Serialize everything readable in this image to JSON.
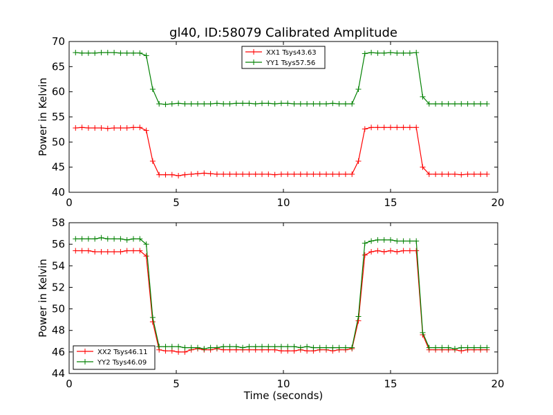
{
  "figure": {
    "title": "gl40, ID:58079 Calibrated Amplitude"
  },
  "colors": {
    "red": "#ff0000",
    "green": "#008000",
    "frame": "#000000",
    "background": "#ffffff"
  },
  "chart_data": [
    {
      "type": "line",
      "title": "gl40, ID:58079 Calibrated Amplitude",
      "xlabel": "",
      "ylabel": "Power in Kelvin",
      "xlim": [
        0,
        20
      ],
      "ylim": [
        40,
        70
      ],
      "xticks": [
        0,
        5,
        10,
        15,
        20
      ],
      "yticks": [
        40,
        45,
        50,
        55,
        60,
        65,
        70
      ],
      "grid": false,
      "legend_position": "top-center",
      "x": [
        0.3,
        0.6,
        0.9,
        1.2,
        1.5,
        1.8,
        2.1,
        2.4,
        2.7,
        3.0,
        3.3,
        3.6,
        3.9,
        4.2,
        4.5,
        4.8,
        5.1,
        5.4,
        5.7,
        6.0,
        6.3,
        6.6,
        6.9,
        7.2,
        7.5,
        7.8,
        8.1,
        8.4,
        8.7,
        9.0,
        9.3,
        9.6,
        9.9,
        10.2,
        10.5,
        10.8,
        11.1,
        11.4,
        11.7,
        12.0,
        12.3,
        12.6,
        12.9,
        13.2,
        13.5,
        13.8,
        14.1,
        14.4,
        14.7,
        15.0,
        15.3,
        15.6,
        15.9,
        16.2,
        16.5,
        16.8,
        17.1,
        17.4,
        17.7,
        18.0,
        18.3,
        18.6,
        18.9,
        19.2,
        19.5
      ],
      "series": [
        {
          "name": "XX1 Tsys43.63",
          "color": "#ff0000",
          "values": [
            52.8,
            52.9,
            52.8,
            52.8,
            52.8,
            52.7,
            52.8,
            52.8,
            52.8,
            52.9,
            52.9,
            52.3,
            46.2,
            43.5,
            43.5,
            43.5,
            43.3,
            43.5,
            43.6,
            43.7,
            43.8,
            43.7,
            43.6,
            43.6,
            43.6,
            43.6,
            43.6,
            43.6,
            43.6,
            43.6,
            43.6,
            43.5,
            43.6,
            43.6,
            43.6,
            43.6,
            43.6,
            43.6,
            43.6,
            43.6,
            43.6,
            43.6,
            43.6,
            43.6,
            46.2,
            52.6,
            52.9,
            52.9,
            52.9,
            52.9,
            52.9,
            52.9,
            52.9,
            52.9,
            45.0,
            43.6,
            43.6,
            43.6,
            43.6,
            43.6,
            43.5,
            43.6,
            43.6,
            43.6,
            43.6
          ]
        },
        {
          "name": "YY1 Tsys57.56",
          "color": "#008000",
          "values": [
            67.8,
            67.7,
            67.7,
            67.7,
            67.8,
            67.8,
            67.8,
            67.7,
            67.7,
            67.7,
            67.7,
            67.2,
            60.5,
            57.6,
            57.5,
            57.6,
            57.7,
            57.6,
            57.6,
            57.6,
            57.6,
            57.6,
            57.7,
            57.6,
            57.6,
            57.7,
            57.7,
            57.7,
            57.6,
            57.7,
            57.7,
            57.6,
            57.7,
            57.7,
            57.6,
            57.6,
            57.6,
            57.6,
            57.6,
            57.6,
            57.7,
            57.6,
            57.6,
            57.6,
            60.5,
            67.6,
            67.8,
            67.7,
            67.7,
            67.8,
            67.7,
            67.7,
            67.7,
            67.8,
            59.0,
            57.6,
            57.6,
            57.6,
            57.6,
            57.6,
            57.6,
            57.6,
            57.6,
            57.6,
            57.6
          ]
        }
      ]
    },
    {
      "type": "line",
      "title": "",
      "xlabel": "Time (seconds)",
      "ylabel": "Power in Kelvin",
      "xlim": [
        0,
        20
      ],
      "ylim": [
        44,
        58
      ],
      "xticks": [
        0,
        5,
        10,
        15,
        20
      ],
      "yticks": [
        44,
        46,
        48,
        50,
        52,
        54,
        56,
        58
      ],
      "grid": false,
      "legend_position": "bottom-left",
      "x": [
        0.3,
        0.6,
        0.9,
        1.2,
        1.5,
        1.8,
        2.1,
        2.4,
        2.7,
        3.0,
        3.3,
        3.6,
        3.9,
        4.2,
        4.5,
        4.8,
        5.1,
        5.4,
        5.7,
        6.0,
        6.3,
        6.6,
        6.9,
        7.2,
        7.5,
        7.8,
        8.1,
        8.4,
        8.7,
        9.0,
        9.3,
        9.6,
        9.9,
        10.2,
        10.5,
        10.8,
        11.1,
        11.4,
        11.7,
        12.0,
        12.3,
        12.6,
        12.9,
        13.2,
        13.5,
        13.8,
        14.1,
        14.4,
        14.7,
        15.0,
        15.3,
        15.6,
        15.9,
        16.2,
        16.5,
        16.8,
        17.1,
        17.4,
        17.7,
        18.0,
        18.3,
        18.6,
        18.9,
        19.2,
        19.5
      ],
      "series": [
        {
          "name": "XX2 Tsys46.11",
          "color": "#ff0000",
          "values": [
            55.4,
            55.4,
            55.4,
            55.3,
            55.3,
            55.3,
            55.3,
            55.3,
            55.4,
            55.4,
            55.4,
            54.9,
            48.8,
            46.2,
            46.1,
            46.1,
            46.0,
            46.0,
            46.2,
            46.3,
            46.2,
            46.2,
            46.3,
            46.2,
            46.2,
            46.2,
            46.2,
            46.2,
            46.2,
            46.2,
            46.2,
            46.2,
            46.1,
            46.1,
            46.1,
            46.2,
            46.1,
            46.1,
            46.2,
            46.2,
            46.1,
            46.2,
            46.2,
            46.3,
            48.9,
            55.0,
            55.3,
            55.4,
            55.3,
            55.4,
            55.3,
            55.4,
            55.4,
            55.4,
            47.6,
            46.2,
            46.2,
            46.2,
            46.2,
            46.2,
            46.1,
            46.2,
            46.2,
            46.2,
            46.2
          ]
        },
        {
          "name": "YY2 Tsys46.09",
          "color": "#008000",
          "values": [
            56.5,
            56.5,
            56.5,
            56.5,
            56.6,
            56.5,
            56.5,
            56.5,
            56.4,
            56.5,
            56.5,
            56.0,
            49.2,
            46.5,
            46.5,
            46.5,
            46.5,
            46.4,
            46.4,
            46.4,
            46.3,
            46.4,
            46.4,
            46.5,
            46.5,
            46.5,
            46.4,
            46.5,
            46.5,
            46.5,
            46.5,
            46.5,
            46.5,
            46.5,
            46.5,
            46.4,
            46.5,
            46.4,
            46.4,
            46.4,
            46.4,
            46.4,
            46.4,
            46.4,
            49.3,
            56.1,
            56.3,
            56.4,
            56.4,
            56.4,
            56.3,
            56.3,
            56.3,
            56.3,
            47.8,
            46.4,
            46.4,
            46.4,
            46.4,
            46.3,
            46.4,
            46.4,
            46.4,
            46.4,
            46.4
          ]
        }
      ]
    }
  ]
}
